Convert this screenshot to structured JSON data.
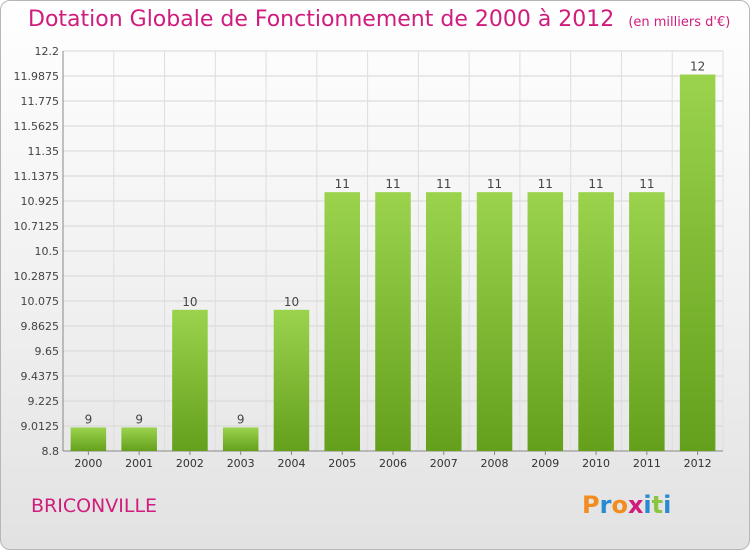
{
  "header": {
    "title": "Dotation Globale de Fonctionnement de 2000 à 2012",
    "unit": "(en milliers d'€)"
  },
  "footer": {
    "place": "BRICONVILLE",
    "logo": [
      "P",
      "r",
      "o",
      "x",
      "i",
      "t",
      "i"
    ]
  },
  "colors": {
    "title": "#d01c7c",
    "bar_light": "#9bd34d",
    "bar_dark": "#64a01c",
    "logo": [
      "#f28c1e",
      "#2a8ad1",
      "#f28c1e",
      "#d01c7c",
      "#2a8ad1",
      "#8bc53f",
      "#2a8ad1"
    ]
  },
  "chart_data": {
    "type": "bar",
    "categories": [
      "2000",
      "2001",
      "2002",
      "2003",
      "2004",
      "2005",
      "2006",
      "2007",
      "2008",
      "2009",
      "2010",
      "2011",
      "2012"
    ],
    "values": [
      9,
      9,
      10,
      9,
      10,
      11,
      11,
      11,
      11,
      11,
      11,
      11,
      12
    ],
    "labels": [
      "9",
      "9",
      "10",
      "9",
      "10",
      "11",
      "11",
      "11",
      "11",
      "11",
      "11",
      "11",
      "12"
    ],
    "yticks": [
      "8.8",
      "9.0125",
      "9.225",
      "9.4375",
      "9.65",
      "9.8625",
      "10.075",
      "10.2875",
      "10.5",
      "10.7125",
      "10.925",
      "11.1375",
      "11.35",
      "11.5625",
      "11.775",
      "11.9875",
      "12.2"
    ],
    "ylim": [
      8.8,
      12.2
    ],
    "grid": true
  }
}
